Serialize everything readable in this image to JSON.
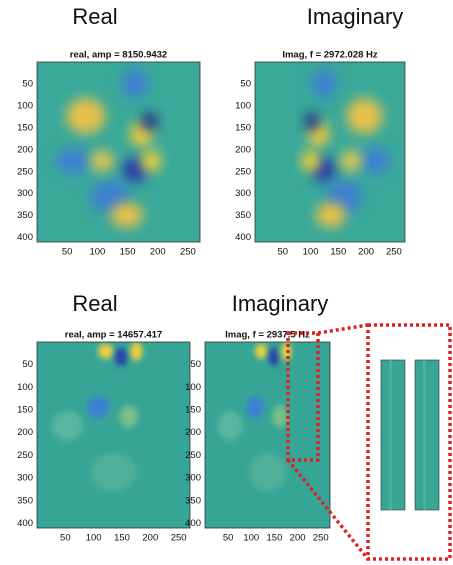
{
  "panels": [
    {
      "header": "Real",
      "title": "real, amp = 8150.9432",
      "yticks": [
        50,
        100,
        150,
        200,
        250,
        300,
        350,
        400
      ],
      "xticks": [
        50,
        100,
        150,
        200,
        250
      ]
    },
    {
      "header": "Imaginary",
      "title": "Imag, f = 2972.028 Hz",
      "yticks": [
        50,
        100,
        150,
        200,
        250,
        300,
        350,
        400
      ],
      "xticks": [
        50,
        100,
        150,
        200,
        250
      ]
    },
    {
      "header": "Real",
      "title": "real, amp = 14657.417",
      "yticks": [
        50,
        100,
        150,
        200,
        250,
        300,
        350,
        400
      ],
      "xticks": [
        50,
        100,
        150,
        200,
        250
      ]
    },
    {
      "header": "Imaginary",
      "title": "Imag, f = 2937.5 Hz",
      "yticks": [
        50,
        100,
        150,
        200,
        250,
        300,
        350,
        400
      ],
      "xticks": [
        50,
        100,
        150,
        200,
        250
      ]
    }
  ]
}
